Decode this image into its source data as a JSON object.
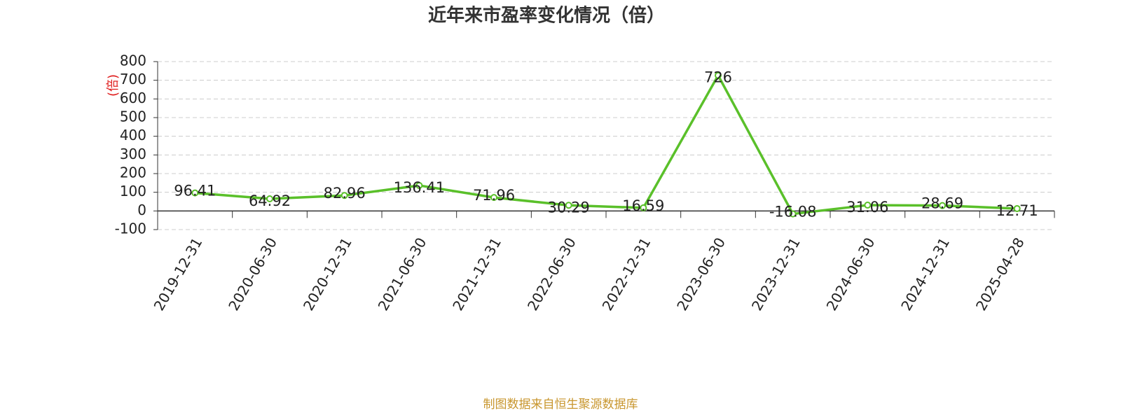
{
  "chart_data": {
    "type": "line",
    "title": "近年来市盈率变化情况（倍）",
    "y_label": "(倍)",
    "source": "制图数据来自恒生聚源数据库",
    "categories": [
      "2019-12-31",
      "2020-06-30",
      "2020-12-31",
      "2021-06-30",
      "2021-12-31",
      "2022-06-30",
      "2022-12-31",
      "2023-06-30",
      "2023-12-31",
      "2024-06-30",
      "2024-12-31",
      "2025-04-28"
    ],
    "values": [
      96.41,
      64.92,
      82.96,
      136.41,
      71.96,
      30.29,
      16.59,
      726,
      -16.08,
      31.06,
      28.69,
      12.71
    ],
    "color": "#5ac02a",
    "ylim": [
      -100,
      800
    ],
    "yticks": [
      -100,
      0,
      100,
      200,
      300,
      400,
      500,
      600,
      700,
      800
    ],
    "grid": true
  }
}
